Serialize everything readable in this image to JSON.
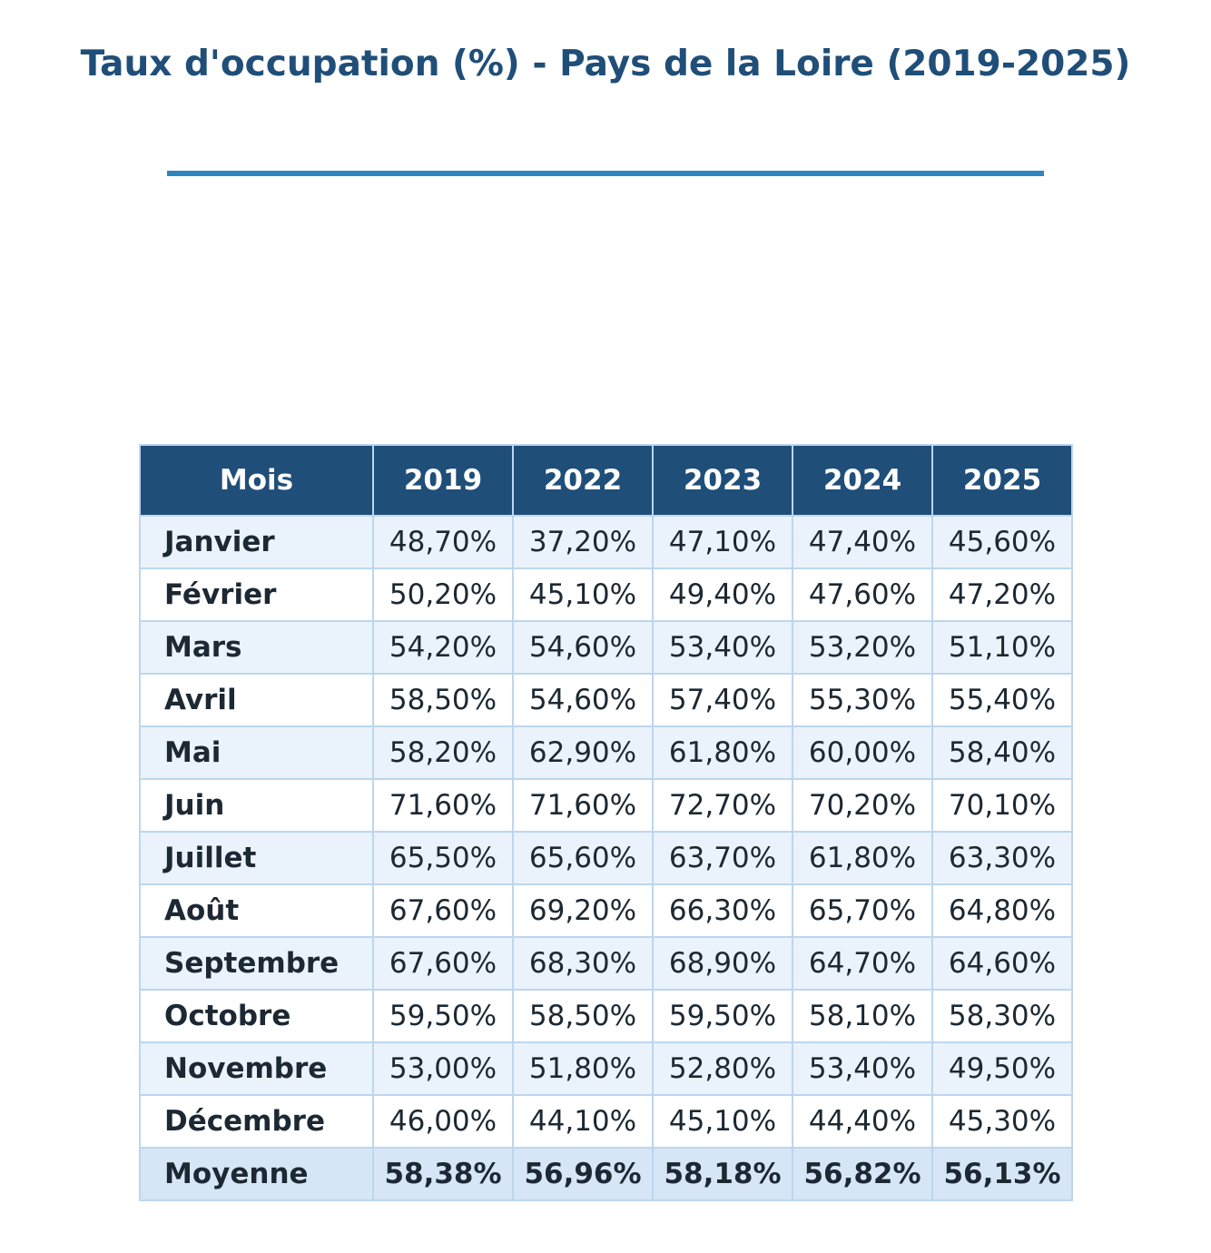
{
  "chart_data": {
    "type": "table",
    "title": "Taux d'occupation (%) - Pays de la Loire (2019-2025)",
    "columns": [
      "Mois",
      "2019",
      "2022",
      "2023",
      "2024",
      "2025"
    ],
    "rows": [
      {
        "month": "Janvier",
        "values": [
          "48,70%",
          "37,20%",
          "47,10%",
          "47,40%",
          "45,60%"
        ]
      },
      {
        "month": "Février",
        "values": [
          "50,20%",
          "45,10%",
          "49,40%",
          "47,60%",
          "47,20%"
        ]
      },
      {
        "month": "Mars",
        "values": [
          "54,20%",
          "54,60%",
          "53,40%",
          "53,20%",
          "51,10%"
        ]
      },
      {
        "month": "Avril",
        "values": [
          "58,50%",
          "54,60%",
          "57,40%",
          "55,30%",
          "55,40%"
        ]
      },
      {
        "month": "Mai",
        "values": [
          "58,20%",
          "62,90%",
          "61,80%",
          "60,00%",
          "58,40%"
        ]
      },
      {
        "month": "Juin",
        "values": [
          "71,60%",
          "71,60%",
          "72,70%",
          "70,20%",
          "70,10%"
        ]
      },
      {
        "month": "Juillet",
        "values": [
          "65,50%",
          "65,60%",
          "63,70%",
          "61,80%",
          "63,30%"
        ]
      },
      {
        "month": "Août",
        "values": [
          "67,60%",
          "69,20%",
          "66,30%",
          "65,70%",
          "64,80%"
        ]
      },
      {
        "month": "Septembre",
        "values": [
          "67,60%",
          "68,30%",
          "68,90%",
          "64,70%",
          "64,60%"
        ]
      },
      {
        "month": "Octobre",
        "values": [
          "59,50%",
          "58,50%",
          "59,50%",
          "58,10%",
          "58,30%"
        ]
      },
      {
        "month": "Novembre",
        "values": [
          "53,00%",
          "51,80%",
          "52,80%",
          "53,40%",
          "49,50%"
        ]
      },
      {
        "month": "Décembre",
        "values": [
          "46,00%",
          "44,10%",
          "45,10%",
          "44,40%",
          "45,30%"
        ]
      }
    ],
    "footer": {
      "month": "Moyenne",
      "values": [
        "58,38%",
        "56,96%",
        "58,18%",
        "56,82%",
        "56,13%"
      ]
    }
  },
  "colors": {
    "title": "#1f4e79",
    "rule": "#2e86c1",
    "header_bg": "#1f4e79",
    "header_text": "#ffffff",
    "row_alt_bg": "#eaf2fb",
    "row_bg": "#ffffff",
    "footer_bg": "#d6e6f7",
    "border": "#bcd6ee",
    "cell_text": "#1c2833"
  }
}
